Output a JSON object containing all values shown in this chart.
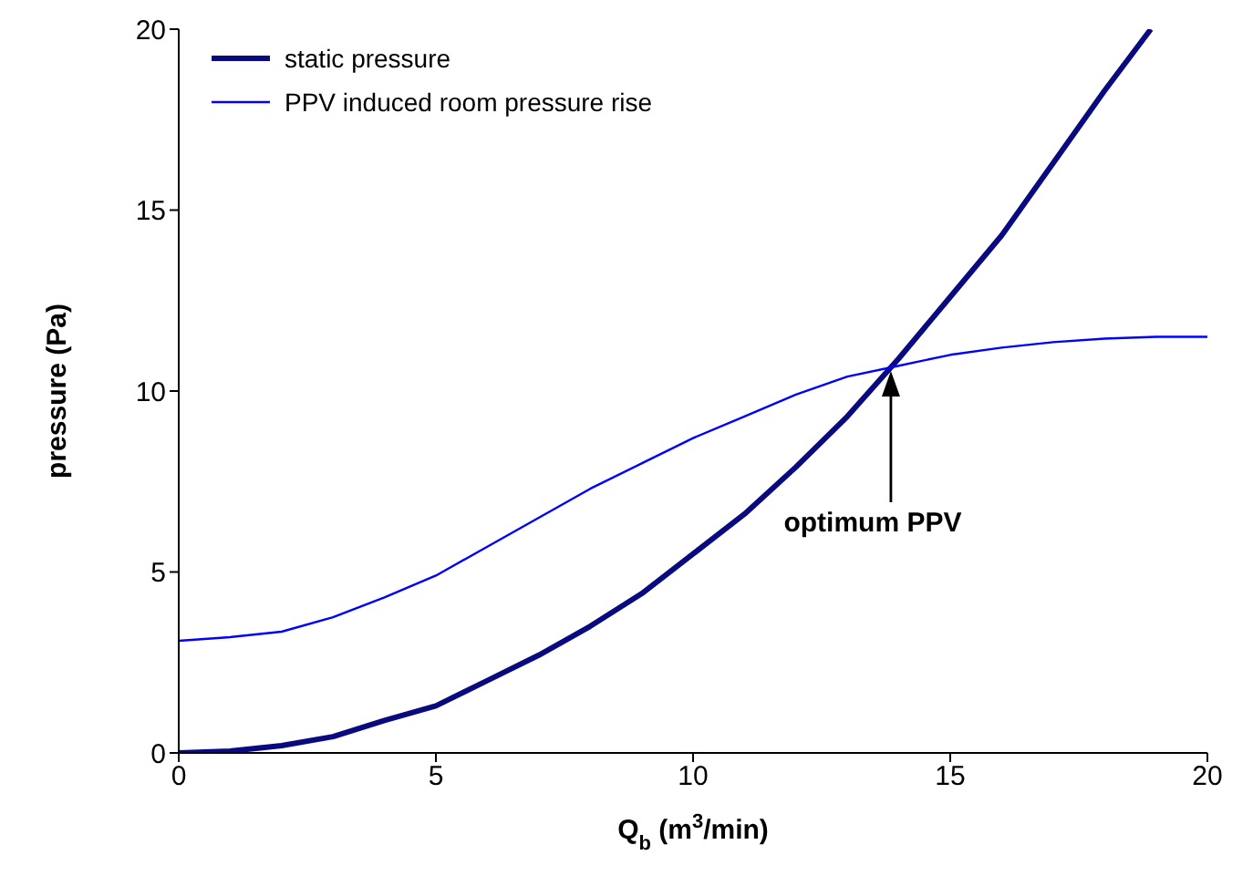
{
  "chart_data": {
    "type": "line",
    "xlabel": "Q$_{b}$ (m$^{3}$/min)",
    "ylabel": "pressure (Pa)",
    "xlim": [
      0,
      20
    ],
    "ylim": [
      0,
      20
    ],
    "xticks": [
      0,
      5,
      10,
      15,
      20
    ],
    "yticks": [
      0,
      5,
      10,
      15,
      20
    ],
    "grid": false,
    "legend": "top left",
    "marker": "none",
    "line_style": "solid",
    "series": [
      {
        "name": "static pressure",
        "color": "#0a0a80",
        "x": [
          0,
          1,
          2,
          3,
          4,
          5,
          6,
          7,
          8,
          9,
          10,
          11,
          12,
          13,
          14,
          15,
          16,
          17,
          18,
          18.9
        ],
        "values": [
          0,
          0.05,
          0.2,
          0.45,
          0.9,
          1.3,
          2.0,
          2.7,
          3.5,
          4.4,
          5.5,
          6.6,
          7.9,
          9.3,
          10.9,
          12.6,
          14.3,
          16.3,
          18.3,
          20
        ]
      },
      {
        "name": "PPV induced room pressure rise",
        "color": "#0000ff",
        "x": [
          0,
          1,
          2,
          3,
          4,
          5,
          6,
          7,
          8,
          9,
          10,
          11,
          12,
          13,
          14,
          15,
          16,
          17,
          18,
          19,
          20
        ],
        "values": [
          3.1,
          3.2,
          3.35,
          3.75,
          4.3,
          4.9,
          5.7,
          6.5,
          7.3,
          8.0,
          8.7,
          9.3,
          9.9,
          10.4,
          10.7,
          11.0,
          11.2,
          11.35,
          11.45,
          11.5,
          11.5
        ]
      }
    ],
    "annotations": [
      "optimum PPV"
    ]
  }
}
